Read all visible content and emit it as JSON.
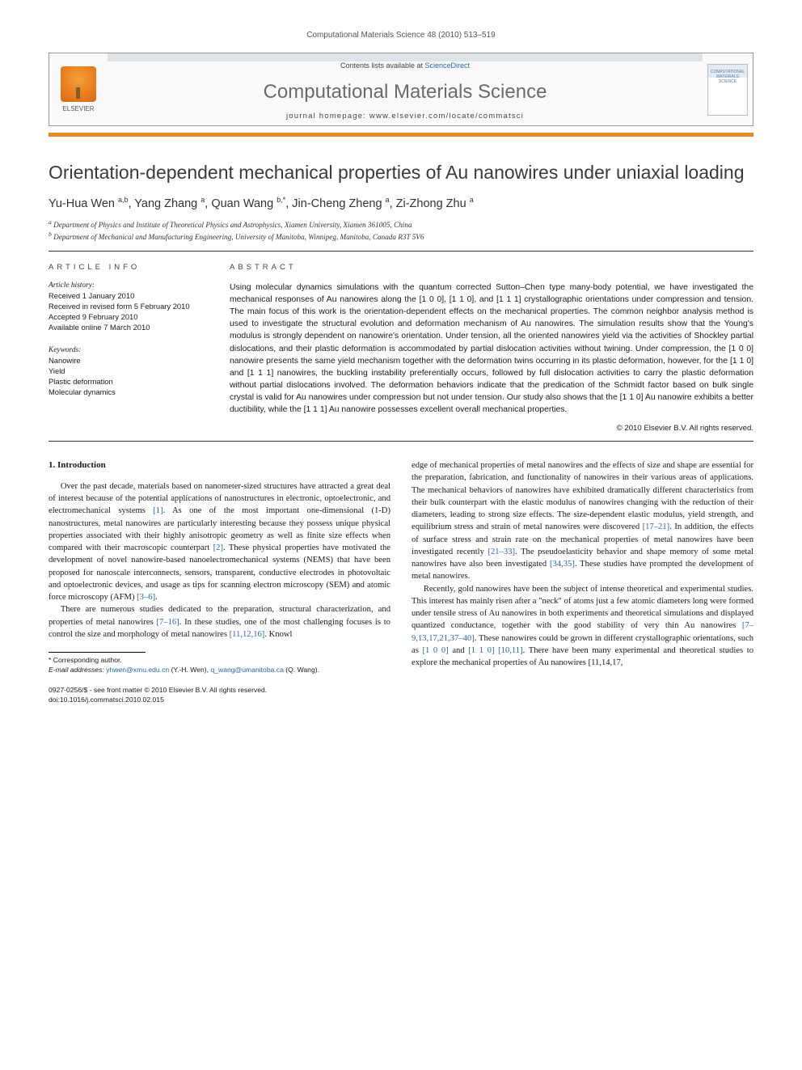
{
  "header": {
    "running_head": "Computational Materials Science 48 (2010) 513–519",
    "contents_prefix": "Contents lists available at ",
    "contents_link": "ScienceDirect",
    "journal_name": "Computational Materials Science",
    "homepage_label": "journal homepage: www.elsevier.com/locate/commatsci",
    "elsevier": "ELSEVIER",
    "cover_label": "COMPUTATIONAL MATERIALS SCIENCE"
  },
  "title": "Orientation-dependent mechanical properties of Au nanowires under uniaxial loading",
  "authors_html": "Yu-Hua Wen <sup>a,b</sup>, Yang Zhang <sup>a</sup>, Quan Wang <sup>b,*</sup>, Jin-Cheng Zheng <sup>a</sup>, Zi-Zhong Zhu <sup>a</sup>",
  "affiliations": [
    "a Department of Physics and Institute of Theoretical Physics and Astrophysics, Xiamen University, Xiamen 361005, China",
    "b Department of Mechanical and Manufacturing Engineering, University of Manitoba, Winnipeg, Manitoba, Canada R3T 5V6"
  ],
  "info": {
    "article_info_header": "ARTICLE INFO",
    "abstract_header": "ABSTRACT",
    "history_label": "Article history:",
    "history": [
      "Received 1 January 2010",
      "Received in revised form 5 February 2010",
      "Accepted 9 February 2010",
      "Available online 7 March 2010"
    ],
    "keywords_label": "Keywords:",
    "keywords": [
      "Nanowire",
      "Yield",
      "Plastic deformation",
      "Molecular dynamics"
    ]
  },
  "abstract": "Using molecular dynamics simulations with the quantum corrected Sutton–Chen type many-body potential, we have investigated the mechanical responses of Au nanowires along the [1 0 0], [1 1 0], and [1 1 1] crystallographic orientations under compression and tension. The main focus of this work is the orientation-dependent effects on the mechanical properties. The common neighbor analysis method is used to investigate the structural evolution and deformation mechanism of Au nanowires. The simulation results show that the Young's modulus is strongly dependent on nanowire's orientation. Under tension, all the oriented nanowires yield via the activities of Shockley partial dislocations, and their plastic deformation is accommodated by partial dislocation activities without twining. Under compression, the [1 0 0] nanowire presents the same yield mechanism together with the deformation twins occurring in its plastic deformation, however, for the [1 1 0] and [1 1 1] nanowires, the buckling instability preferentially occurs, followed by full dislocation activities to carry the plastic deformation without partial dislocations involved. The deformation behaviors indicate that the predication of the Schmidt factor based on bulk single crystal is valid for Au nanowires under compression but not under tension. Our study also shows that the [1 1 0] Au nanowire exhibits a better ductibility, while the [1 1 1] Au nanowire possesses excellent overall mechanical properties.",
  "copyright": "© 2010 Elsevier B.V. All rights reserved.",
  "intro_heading": "1. Introduction",
  "intro_p1": "Over the past decade, materials based on nanometer-sized structures have attracted a great deal of interest because of the potential applications of nanostructures in electronic, optoelectronic, and electromechanical systems [1]. As one of the most important one-dimensional (1-D) nanostructures, metal nanowires are particularly interesting because they possess unique physical properties associated with their highly anisotropic geometry as well as finite size effects when compared with their macroscopic counterpart [2]. These physical properties have motivated the development of novel nanowire-based nanoelectromechanical systems (NEMS) that have been proposed for nanoscale interconnects, sensors, transparent, conductive electrodes in photovoltaic and optoelectronic devices, and usage as tips for scanning electron microscopy (SEM) and atomic force microscopy (AFM) [3–6].",
  "intro_p2": "There are numerous studies dedicated to the preparation, structural characterization, and properties of metal nanowires [7–16]. In these studies, one of the most challenging focuses is to control the size and morphology of metal nanowires [11,12,16]. Knowledge of mechanical properties of metal nanowires and the effects of size and shape are essential for the preparation, fabrication, and functionality of nanowires in their various areas of applications. The mechanical behaviors of nanowires have exhibited dramatically different characteristics from their bulk counterpart with the elastic modulus of nanowires changing with the reduction of their diameters, leading to strong size effects. The size-dependent elastic modulus, yield strength, and equilibrium stress and strain of metal nanowires were discovered [17–21]. In addition, the effects of surface stress and strain rate on the mechanical properties of metal nanowires have been investigated recently [21–33]. The pseudoelasticity behavior and shape memory of some metal nanowires have also been investigated [34,35]. These studies have prompted the development of metal nanowires.",
  "intro_p3": "Recently, gold nanowires have been the subject of intense theoretical and experimental studies. This interest has mainly risen after a \"neck\" of atoms just a few atomic diameters long were formed under tensile stress of Au nanowires in both experiments and theoretical simulations and displayed quantized conductance, together with the good stability of very thin Au nanowires [7–9,13,17,21,37–40]. These nanowires could be grown in different crystallographic orientations, such as [1 0 0] and [1 1 0] [10,11]. There have been many experimental and theoretical studies to explore the mechanical properties of Au nanowires [11,14,17,",
  "footnotes": {
    "corr": "* Corresponding author.",
    "emails_label": "E-mail addresses:",
    "email1": "yhwen@xmu.edu.cn",
    "email1_who": "(Y.-H. Wen),",
    "email2": "q_wang@umanitoba.ca",
    "email2_who": "(Q. Wang)."
  },
  "footer_lines": [
    "0927-0256/$ - see front matter © 2010 Elsevier B.V. All rights reserved.",
    "doi:10.1016/j.commatsci.2010.02.015"
  ],
  "colors": {
    "accent_orange": "#e38b2b",
    "link_blue": "#2a63b0",
    "banner_gray": "#6b6b6b"
  }
}
